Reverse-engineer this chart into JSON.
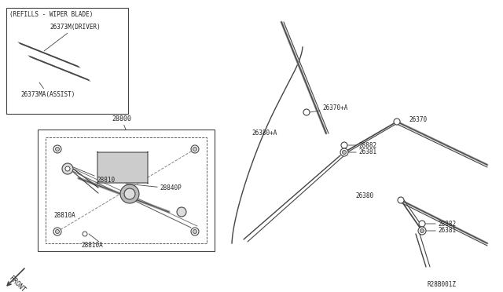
{
  "bg_color": "#ffffff",
  "line_color": "#444444",
  "text_color": "#222222",
  "ref_code": "R28B001Z",
  "parts": {
    "refill_box_label": "(REFILLS - WIPER BLADE)",
    "driver_label": "26373M(DRIVER)",
    "assist_label": "26373MA(ASSIST)",
    "part_28800": "28800",
    "part_28810": "28810",
    "part_28840p": "28840P",
    "part_28810a_1": "28810A",
    "part_28810a_2": "28810A",
    "part_26370a": "26370+A",
    "part_26380a": "26380+A",
    "part_28882_1": "28882",
    "part_26381_1": "26381",
    "part_26370": "26370",
    "part_26380": "26380",
    "part_28882_2": "28882",
    "part_26381_2": "26381",
    "front_label": "FRONT"
  }
}
